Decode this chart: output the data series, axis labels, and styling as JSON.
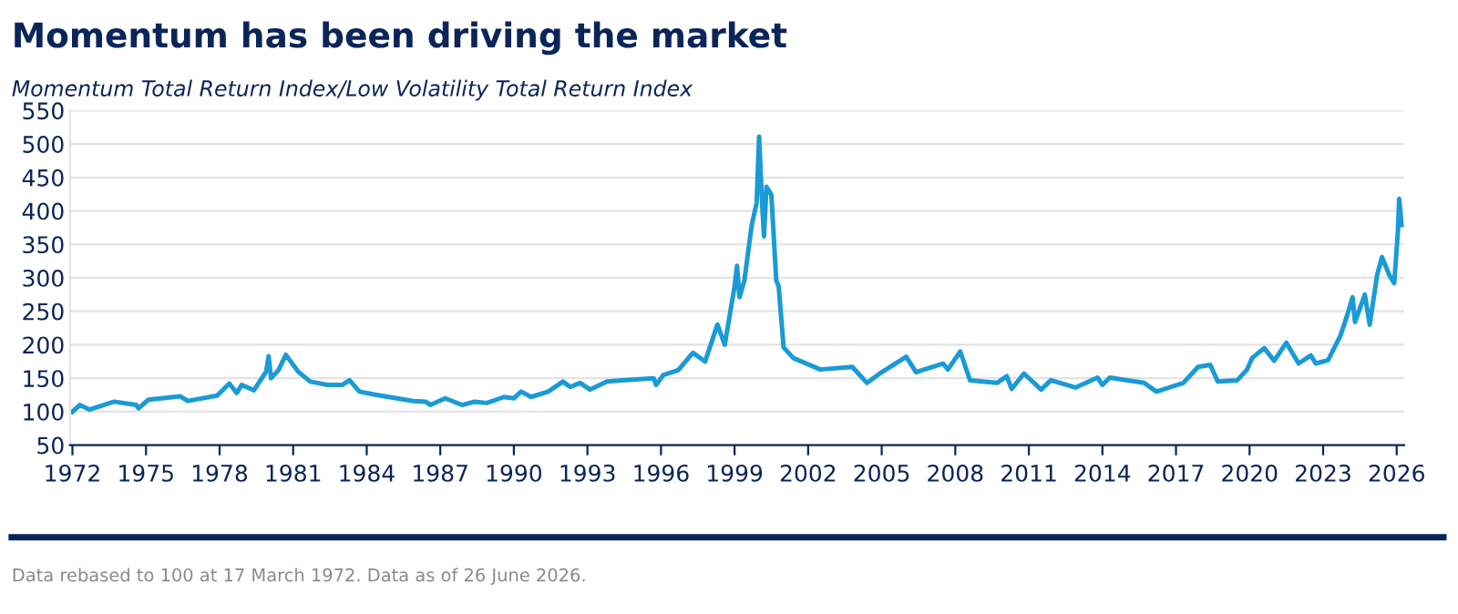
{
  "chart_data": {
    "type": "line",
    "title": "Momentum has been driving the market",
    "subtitle": "Momentum Total Return Index/Low Volatility Total Return Index",
    "annotations": [
      "Data rebased to 100 at 17 March 1972. Data as of 26 June 2026."
    ],
    "series": [
      {
        "color": "#1a9ad6",
        "x": [
          1972.0,
          1972.3,
          1972.7,
          1973.7,
          1974.6,
          1974.7,
          1975.1,
          1976.4,
          1976.7,
          1977.9,
          1978.4,
          1978.7,
          1978.9,
          1979.4,
          1979.9,
          1980.0,
          1980.1,
          1980.4,
          1980.7,
          1981.2,
          1981.7,
          1982.4,
          1983.0,
          1983.3,
          1983.7,
          1984.4,
          1985.9,
          1986.4,
          1986.6,
          1987.2,
          1987.9,
          1988.4,
          1988.9,
          1989.6,
          1990.0,
          1990.3,
          1990.7,
          1991.4,
          1992.0,
          1992.3,
          1992.7,
          1993.1,
          1993.8,
          1994.8,
          1995.7,
          1995.8,
          1996.1,
          1996.7,
          1997.3,
          1997.8,
          1998.3,
          1998.6,
          1999.0,
          1999.1,
          1999.2,
          1999.4,
          1999.7,
          1999.9,
          2000.0,
          2000.1,
          2000.2,
          2000.3,
          2000.5,
          2000.7,
          2000.8,
          2001.0,
          2001.4,
          2002.5,
          2003.8,
          2004.4,
          2005.0,
          2006.0,
          2006.4,
          2007.5,
          2007.7,
          2008.2,
          2008.6,
          2009.7,
          2010.1,
          2010.3,
          2010.8,
          2011.5,
          2011.9,
          2012.9,
          2013.8,
          2014.0,
          2014.3,
          2015.7,
          2016.2,
          2017.3,
          2017.9,
          2018.4,
          2018.7,
          2019.5,
          2019.9,
          2020.1,
          2020.6,
          2021.0,
          2021.5,
          2022.0,
          2022.5,
          2022.7,
          2023.2,
          2023.7,
          2024.0,
          2024.2,
          2024.3,
          2024.7,
          2024.9,
          2025.2,
          2025.4,
          2025.7,
          2025.9,
          2026.05,
          2026.1,
          2026.2
        ],
        "values": [
          100,
          110,
          103,
          115,
          110,
          105,
          118,
          123,
          116,
          124,
          142,
          128,
          140,
          132,
          160,
          183,
          150,
          162,
          185,
          160,
          145,
          140,
          140,
          147,
          130,
          125,
          116,
          115,
          110,
          120,
          110,
          115,
          113,
          122,
          120,
          130,
          122,
          130,
          145,
          137,
          143,
          133,
          145,
          148,
          150,
          140,
          155,
          162,
          188,
          175,
          230,
          200,
          287,
          318,
          271,
          296,
          379,
          412,
          511,
          428,
          362,
          436,
          424,
          296,
          287,
          196,
          180,
          163,
          167,
          143,
          159,
          182,
          159,
          172,
          163,
          190,
          147,
          143,
          153,
          134,
          157,
          133,
          147,
          136,
          151,
          140,
          151,
          143,
          130,
          143,
          167,
          170,
          145,
          147,
          163,
          180,
          195,
          176,
          203,
          172,
          184,
          172,
          177,
          213,
          246,
          271,
          234,
          275,
          230,
          304,
          331,
          304,
          292,
          370,
          418,
          379
        ]
      }
    ],
    "xlim": [
      1971.9,
      2026.3
    ],
    "xticks": [
      1972,
      1975,
      1978,
      1981,
      1984,
      1987,
      1990,
      1993,
      1996,
      1999,
      2002,
      2005,
      2008,
      2011,
      2014,
      2017,
      2020,
      2023,
      2026
    ],
    "ylim": [
      50,
      550
    ],
    "yticks": [
      50,
      100,
      150,
      200,
      250,
      300,
      350,
      400,
      450,
      500,
      550
    ],
    "grid": "y",
    "marker": "none",
    "line_style": "solid"
  }
}
